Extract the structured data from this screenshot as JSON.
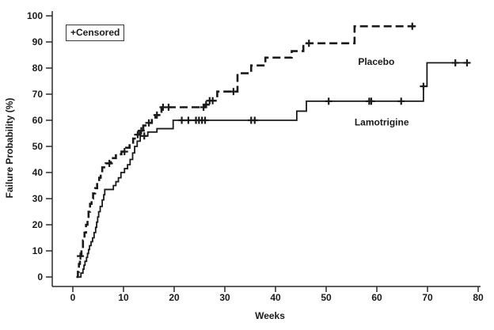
{
  "page": {
    "background": "#ffffff",
    "ink_color": "#1a1a1a"
  },
  "chart_data": {
    "type": "line",
    "subtype": "kaplan_meier_step",
    "xlabel": "Weeks",
    "ylabel": "Failure Probability (%)",
    "xlim": [
      0,
      80
    ],
    "ylim": [
      0,
      100
    ],
    "xticks": [
      0,
      10,
      20,
      30,
      40,
      50,
      60,
      70,
      80
    ],
    "yticks": [
      0,
      10,
      20,
      30,
      40,
      50,
      60,
      70,
      80,
      90,
      100
    ],
    "grid": false,
    "legend": {
      "text": "+Censored",
      "position": "top-left"
    },
    "series": [
      {
        "name": "Placebo",
        "line_style": "dashed",
        "color": "#1a1a1a",
        "label_anchor": {
          "week": 56.3,
          "value": 81.2
        },
        "points": [
          [
            0.7,
            0
          ],
          [
            1.0,
            2
          ],
          [
            1.2,
            5
          ],
          [
            1.4,
            8
          ],
          [
            1.7,
            11
          ],
          [
            2.0,
            14
          ],
          [
            2.3,
            17
          ],
          [
            2.6,
            20
          ],
          [
            2.9,
            23
          ],
          [
            3.1,
            25
          ],
          [
            3.4,
            28
          ],
          [
            3.7,
            30
          ],
          [
            4.0,
            32
          ],
          [
            4.4,
            34
          ],
          [
            4.8,
            36
          ],
          [
            5.2,
            38
          ],
          [
            5.5,
            40
          ],
          [
            5.8,
            42
          ],
          [
            6.5,
            43.5
          ],
          [
            7.5,
            45.5
          ],
          [
            8.5,
            47
          ],
          [
            9.6,
            48
          ],
          [
            10.5,
            49.5
          ],
          [
            11.2,
            51
          ],
          [
            11.9,
            53
          ],
          [
            12.6,
            54.5
          ],
          [
            13.2,
            56
          ],
          [
            13.9,
            58
          ],
          [
            14.8,
            59
          ],
          [
            15.6,
            60.5
          ],
          [
            16.3,
            62
          ],
          [
            17.5,
            65
          ],
          [
            26.0,
            66
          ],
          [
            26.8,
            67.5
          ],
          [
            28.5,
            71
          ],
          [
            32.5,
            78
          ],
          [
            35.2,
            81
          ],
          [
            38.0,
            84
          ],
          [
            43.2,
            86.5
          ],
          [
            45.5,
            89.5
          ],
          [
            55.6,
            96
          ],
          [
            67.5,
            96
          ]
        ],
        "censored": [
          [
            1.5,
            8
          ],
          [
            7.2,
            43.5
          ],
          [
            10.2,
            48
          ],
          [
            12.8,
            54.5
          ],
          [
            13.5,
            56
          ],
          [
            15.0,
            59
          ],
          [
            16.6,
            62
          ],
          [
            17.8,
            65
          ],
          [
            18.9,
            65
          ],
          [
            25.8,
            65
          ],
          [
            26.3,
            66
          ],
          [
            27.0,
            67.5
          ],
          [
            27.6,
            67.5
          ],
          [
            31.7,
            71
          ],
          [
            46.6,
            89.5
          ],
          [
            67.0,
            96
          ]
        ]
      },
      {
        "name": "Lamotrigine",
        "line_style": "solid",
        "color": "#1a1a1a",
        "label_anchor": {
          "week": 55.6,
          "value": 58.0
        },
        "points": [
          [
            1.2,
            0
          ],
          [
            1.6,
            1.5
          ],
          [
            2.0,
            3
          ],
          [
            2.2,
            4.5
          ],
          [
            2.4,
            6
          ],
          [
            2.7,
            7.5
          ],
          [
            2.9,
            9
          ],
          [
            3.1,
            10.5
          ],
          [
            3.3,
            12
          ],
          [
            3.6,
            13.5
          ],
          [
            3.9,
            15
          ],
          [
            4.2,
            17
          ],
          [
            4.5,
            19
          ],
          [
            4.7,
            21
          ],
          [
            4.9,
            23
          ],
          [
            5.1,
            25
          ],
          [
            5.4,
            27
          ],
          [
            5.8,
            29.5
          ],
          [
            6.1,
            31.5
          ],
          [
            6.3,
            33.5
          ],
          [
            8.0,
            35
          ],
          [
            8.5,
            36.5
          ],
          [
            9.0,
            38
          ],
          [
            9.5,
            40
          ],
          [
            10.2,
            41.5
          ],
          [
            10.8,
            43
          ],
          [
            11.3,
            45
          ],
          [
            11.8,
            47.5
          ],
          [
            12.2,
            50
          ],
          [
            12.7,
            52
          ],
          [
            13.3,
            54
          ],
          [
            14.8,
            55.5
          ],
          [
            16.6,
            56.8
          ],
          [
            19.8,
            60
          ],
          [
            44.2,
            63.5
          ],
          [
            46.1,
            67.3
          ],
          [
            69.2,
            73
          ],
          [
            69.9,
            82
          ],
          [
            78.4,
            82
          ]
        ],
        "censored": [
          [
            14.1,
            54
          ],
          [
            21.5,
            60
          ],
          [
            22.8,
            60
          ],
          [
            24.3,
            60
          ],
          [
            24.9,
            60
          ],
          [
            25.5,
            60
          ],
          [
            26.1,
            60
          ],
          [
            35.2,
            60
          ],
          [
            35.9,
            60
          ],
          [
            50.5,
            67.3
          ],
          [
            58.5,
            67.3
          ],
          [
            58.9,
            67.3
          ],
          [
            64.8,
            67.3
          ],
          [
            69.2,
            73
          ],
          [
            75.5,
            82
          ],
          [
            77.8,
            82
          ]
        ]
      }
    ]
  }
}
